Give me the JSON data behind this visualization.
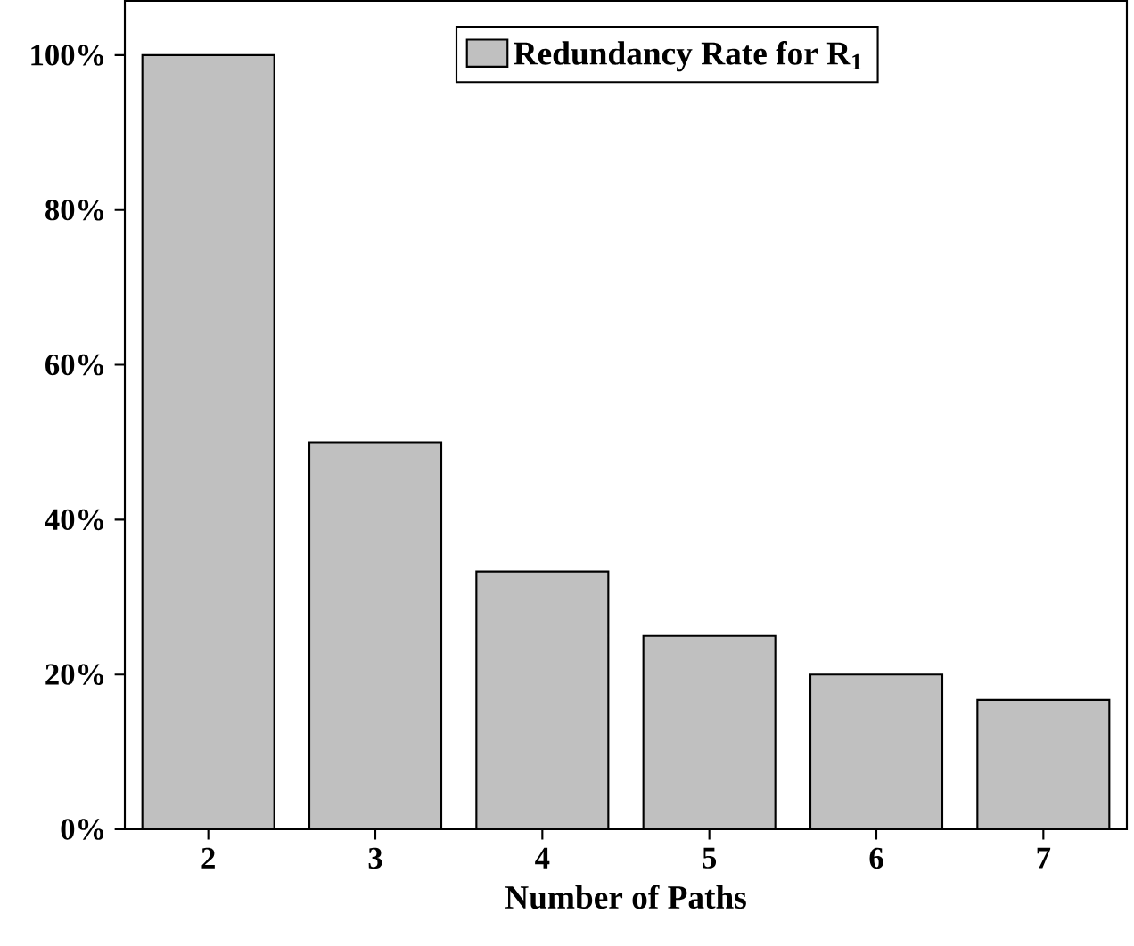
{
  "chart_data": {
    "type": "bar",
    "xlabel": "Number of Paths",
    "categories": [
      "2",
      "3",
      "4",
      "5",
      "6",
      "7"
    ],
    "series": [
      {
        "name": "Redundancy Rate for R$_{1}$",
        "color": "#c0c0c0",
        "values": [
          100,
          50,
          33.3,
          25,
          20,
          16.7
        ]
      }
    ],
    "ylim": [
      0,
      107
    ],
    "yticks": [
      {
        "value": 0,
        "label": "0%"
      },
      {
        "value": 20,
        "label": "20%"
      },
      {
        "value": 40,
        "label": "40%"
      },
      {
        "value": 60,
        "label": "60%"
      },
      {
        "value": 80,
        "label": "80%"
      },
      {
        "value": 100,
        "label": "100%"
      }
    ],
    "legend": "top right",
    "grid": false
  }
}
